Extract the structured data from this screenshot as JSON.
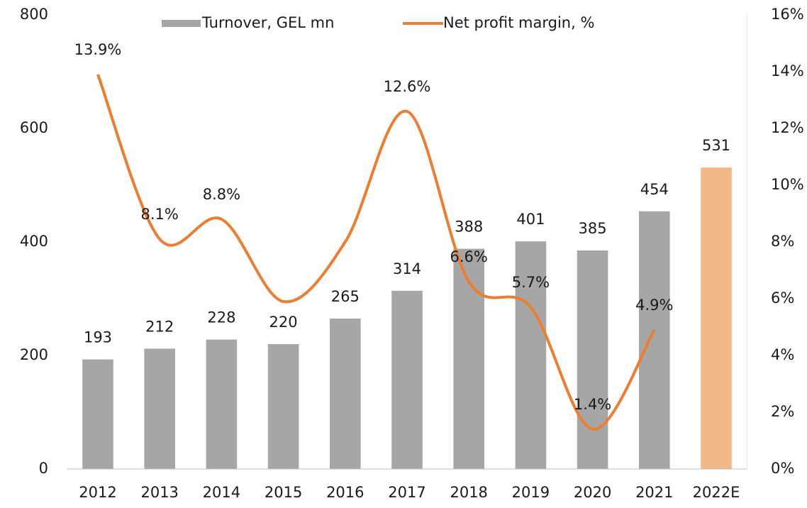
{
  "chart_data": {
    "type": "bar_line",
    "categories": [
      "2012",
      "2013",
      "2014",
      "2015",
      "2016",
      "2017",
      "2018",
      "2019",
      "2020",
      "2021",
      "2022E"
    ],
    "series": [
      {
        "name": "Turnover, GEL mn",
        "type": "bar",
        "color": "#a6a6a6",
        "point_colors": [
          "#a6a6a6",
          "#a6a6a6",
          "#a6a6a6",
          "#a6a6a6",
          "#a6a6a6",
          "#a6a6a6",
          "#a6a6a6",
          "#a6a6a6",
          "#a6a6a6",
          "#a6a6a6",
          "#f4b887"
        ],
        "values": [
          193,
          212,
          228,
          220,
          265,
          314,
          388,
          401,
          385,
          454,
          531
        ]
      },
      {
        "name": "Net profit margin, %",
        "type": "line",
        "color": "#ed7d31",
        "axis": "y2",
        "values": [
          13.9,
          8.1,
          8.8,
          5.9,
          8.0,
          12.6,
          6.6,
          5.7,
          1.4,
          4.9,
          null
        ],
        "value_labels": [
          "13.9%",
          "8.1%",
          "8.8%",
          null,
          null,
          "12.6%",
          "6.6%",
          "5.7%",
          "1.4%",
          "4.9%",
          null
        ]
      }
    ],
    "ylim": [
      0,
      800
    ],
    "yticks": [
      0,
      200,
      400,
      600,
      800
    ],
    "y2lim": [
      0,
      16
    ],
    "y2ticks": [
      {
        "value": 0,
        "label": "0%"
      },
      {
        "value": 2,
        "label": "2%"
      },
      {
        "value": 4,
        "label": "4%"
      },
      {
        "value": 6,
        "label": "6%"
      },
      {
        "value": 8,
        "label": "8%"
      },
      {
        "value": 10,
        "label": "10%"
      },
      {
        "value": 12,
        "label": "12%"
      },
      {
        "value": 14,
        "label": "14%"
      },
      {
        "value": 16,
        "label": "16%"
      }
    ],
    "legend": "top"
  }
}
